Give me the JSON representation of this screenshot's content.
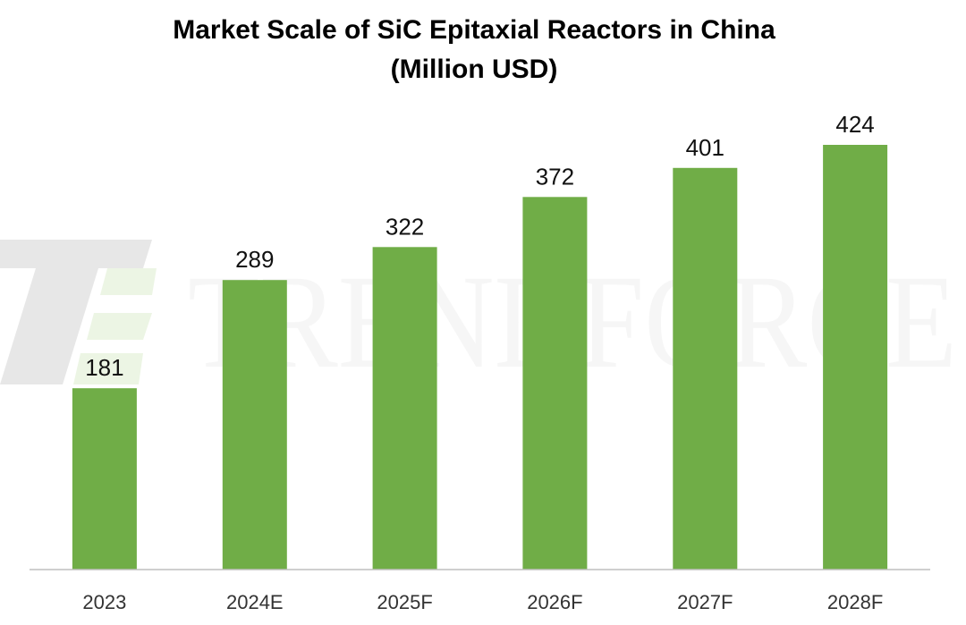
{
  "chart_data": {
    "type": "bar",
    "title": "Market Scale of SiC Epitaxial Reactors in China",
    "subtitle": "(Million USD)",
    "categories": [
      "2023",
      "2024E",
      "2025F",
      "2026F",
      "2027F",
      "2028F"
    ],
    "series": [
      {
        "values": [
          181,
          289,
          322,
          372,
          401,
          424
        ]
      }
    ],
    "xlabel": "",
    "ylabel": "",
    "ylim": [
      0,
      430
    ],
    "grid": false,
    "legend": "none",
    "bar_color": "#70AD47",
    "axis_color": "#BFBFBF"
  },
  "watermark": {
    "text": "TRENDFORCE",
    "logo": "trendforce-logo"
  }
}
